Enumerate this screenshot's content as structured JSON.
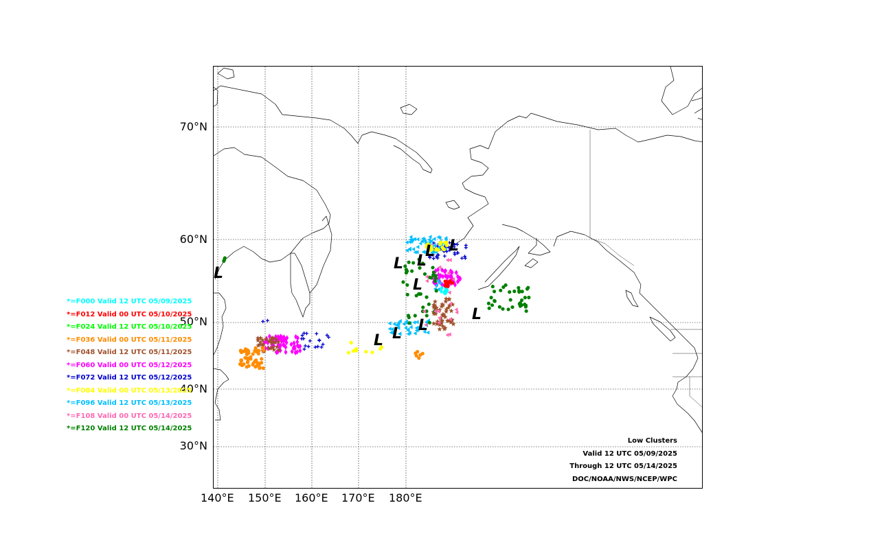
{
  "map": {
    "title_lines": [
      "Low Clusters",
      "Valid 12 UTC 05/09/2025",
      "Through 12 UTC 05/14/2025",
      "DOC/NOAA/NWS/NCEP/WPC"
    ],
    "lat_labels": [
      "70°N",
      "60°N",
      "50°N",
      "40°N",
      "30°N"
    ],
    "lon_labels": [
      "140°E",
      "150°E",
      "160°E",
      "170°E",
      "180°E"
    ],
    "cluster_symbol": "L"
  },
  "legend": [
    {
      "label": "*=F000 Valid 12 UTC 05/09/2025",
      "color": "#00ffff"
    },
    {
      "label": "*=F012 Valid 00 UTC 05/10/2025",
      "color": "#ff0000"
    },
    {
      "label": "*=F024 Valid 12 UTC 05/10/2025",
      "color": "#00ff00"
    },
    {
      "label": "*=F036 Valid 00 UTC 05/11/2025",
      "color": "#ff8c00"
    },
    {
      "label": "*=F048 Valid 12 UTC 05/11/2025",
      "color": "#a0522d"
    },
    {
      "label": "*=F060 Valid 00 UTC 05/12/2025",
      "color": "#ff00ff"
    },
    {
      "label": "*=F072 Valid 12 UTC 05/12/2025",
      "color": "#0000cd"
    },
    {
      "label": "*=F084 Valid 00 UTC 05/13/2025",
      "color": "#ffff00"
    },
    {
      "label": "*=F096 Valid 12 UTC 05/13/2025",
      "color": "#00bfff"
    },
    {
      "label": "*=F108 Valid 00 UTC 05/14/2025",
      "color": "#ff69b4"
    },
    {
      "label": "*=F120 Valid 12 UTC 05/14/2025",
      "color": "#008000"
    }
  ]
}
